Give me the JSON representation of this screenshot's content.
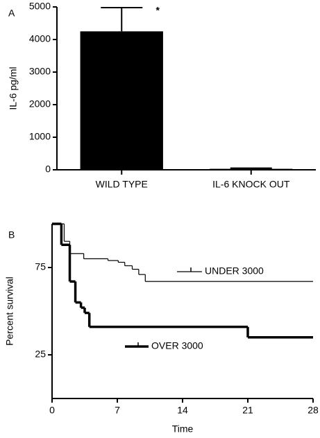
{
  "chart_data": [
    {
      "type": "bar",
      "panel_label": "A",
      "ylabel": "IL-6 pg/ml",
      "categories": [
        "WILD TYPE",
        "IL-6 KNOCK OUT"
      ],
      "values": [
        4250,
        30
      ],
      "errors": [
        730,
        20
      ],
      "color": "#000000",
      "annotations": [
        {
          "text": "*",
          "category": 0
        }
      ],
      "ylim": [
        0,
        5000
      ],
      "yticks": [
        0,
        1000,
        2000,
        3000,
        4000,
        5000
      ]
    },
    {
      "type": "step",
      "panel_label": "B",
      "xlabel": "Time",
      "ylabel": "Percent survival",
      "xlim": [
        0,
        28
      ],
      "xticks": [
        0,
        7,
        14,
        21,
        28
      ],
      "ylim": [
        0,
        100
      ],
      "yticks": [
        25,
        75
      ],
      "series": [
        {
          "name": "UNDER 3000",
          "color": "#000000",
          "line_width": 1.2,
          "x": [
            0,
            1.3,
            1.9,
            3.4,
            6,
            7.1,
            7.8,
            8.6,
            9.3,
            10
          ],
          "values": [
            100,
            90,
            83,
            80,
            79,
            78,
            76,
            74,
            71,
            67
          ]
        },
        {
          "name": "OVER 3000",
          "color": "#000000",
          "line_width": 3.5,
          "x": [
            0,
            1,
            1.9,
            2.5,
            3.1,
            3.5,
            4,
            21
          ],
          "values": [
            100,
            88,
            67,
            55,
            52,
            49,
            41,
            35
          ]
        }
      ]
    }
  ]
}
